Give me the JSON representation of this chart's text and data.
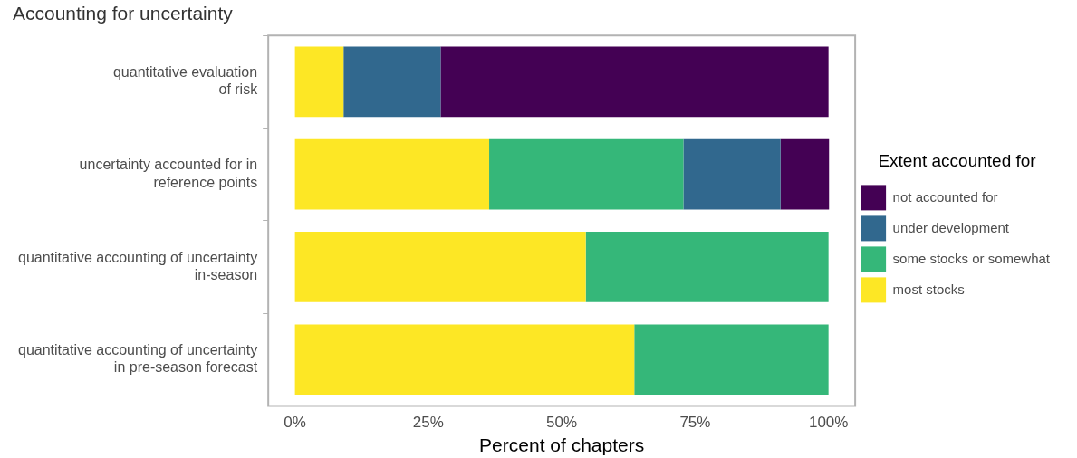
{
  "chart_data": {
    "type": "bar",
    "orientation": "horizontal",
    "stacked": true,
    "title": "Accounting for uncertainty",
    "xlabel": "Percent of chapters",
    "legend_title": "Extent accounted for",
    "legend": "right",
    "grid": false,
    "categories": [
      "quantitative evaluation\nof risk",
      "uncertainty accounted for in\nreference points",
      "quantitative accounting of uncertainty\nin-season",
      "quantitative accounting of uncertainty\nin pre-season forecast"
    ],
    "xlim": [
      -5,
      105
    ],
    "xticks": [
      {
        "value": 0,
        "label": "0%"
      },
      {
        "value": 25,
        "label": "25%"
      },
      {
        "value": 50,
        "label": "50%"
      },
      {
        "value": 75,
        "label": "75%"
      },
      {
        "value": 100,
        "label": "100%"
      }
    ],
    "series": [
      {
        "name": "most stocks",
        "color": "#fde725",
        "values": [
          9.1,
          36.4,
          54.5,
          63.6
        ]
      },
      {
        "name": "some stocks or somewhat",
        "color": "#35b779",
        "values": [
          0,
          36.4,
          45.5,
          36.4
        ]
      },
      {
        "name": "under development",
        "color": "#31688e",
        "values": [
          18.2,
          18.2,
          0,
          0
        ]
      },
      {
        "name": "not accounted for",
        "color": "#440154",
        "values": [
          72.7,
          9.1,
          0,
          0
        ]
      }
    ]
  }
}
